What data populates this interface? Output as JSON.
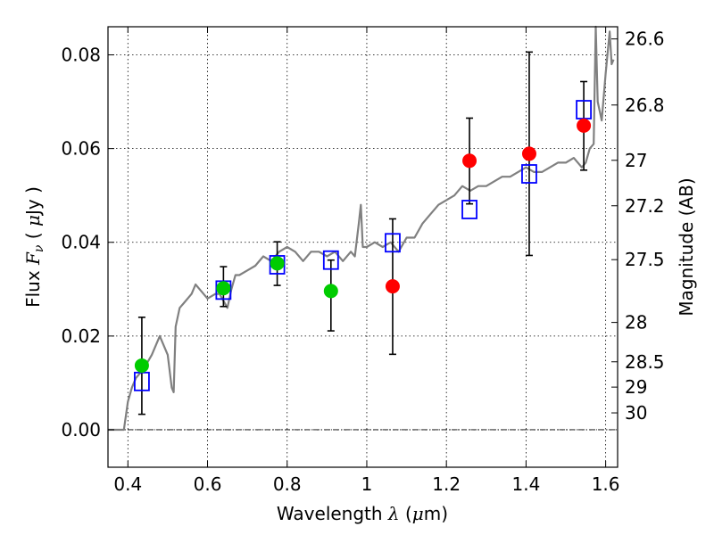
{
  "chart_data": {
    "type": "scatter",
    "xlabel": "Wavelength  λ (μm)",
    "ylabel": "Flux  Fν  ( μJy )",
    "y2label": "Magnitude (AB)",
    "xlim": [
      0.35,
      1.63
    ],
    "ylim": [
      -0.008,
      0.086
    ],
    "xticks": [
      0.4,
      0.6,
      0.8,
      1.0,
      1.2,
      1.4,
      1.6
    ],
    "xtick_labels": [
      "0.4",
      "0.6",
      "0.8",
      "1",
      "1.2",
      "1.4",
      "1.6"
    ],
    "yticks": [
      0.0,
      0.02,
      0.04,
      0.06,
      0.08
    ],
    "ytick_labels": [
      "0.00",
      "0.02",
      "0.04",
      "0.06",
      "0.08"
    ],
    "y2ticks": [
      {
        "label": "26.6",
        "flux": 0.0834
      },
      {
        "label": "26.8",
        "flux": 0.0693
      },
      {
        "label": "27",
        "flux": 0.0575
      },
      {
        "label": "27.2",
        "flux": 0.0478
      },
      {
        "label": "27.5",
        "flux": 0.0363
      },
      {
        "label": "28",
        "flux": 0.0229
      },
      {
        "label": "28.5",
        "flux": 0.0145
      },
      {
        "label": "29",
        "flux": 0.0091
      },
      {
        "label": "30",
        "flux": 0.0036
      }
    ],
    "grid": true,
    "series": [
      {
        "marker": "line",
        "color": "#808080",
        "x": [
          0.35,
          0.38,
          0.39,
          0.4,
          0.41,
          0.42,
          0.44,
          0.46,
          0.48,
          0.5,
          0.51,
          0.515,
          0.52,
          0.53,
          0.54,
          0.56,
          0.57,
          0.58,
          0.6,
          0.62,
          0.63,
          0.65,
          0.66,
          0.67,
          0.68,
          0.7,
          0.72,
          0.74,
          0.76,
          0.78,
          0.8,
          0.82,
          0.84,
          0.86,
          0.88,
          0.9,
          0.92,
          0.94,
          0.96,
          0.97,
          0.98,
          0.985,
          0.99,
          1.0,
          1.02,
          1.04,
          1.06,
          1.08,
          1.1,
          1.12,
          1.14,
          1.16,
          1.18,
          1.2,
          1.22,
          1.24,
          1.26,
          1.28,
          1.3,
          1.32,
          1.34,
          1.36,
          1.38,
          1.4,
          1.42,
          1.44,
          1.46,
          1.48,
          1.5,
          1.52,
          1.54,
          1.55,
          1.56,
          1.57,
          1.575,
          1.58,
          1.59,
          1.6,
          1.61,
          1.615,
          1.62
        ],
        "y": [
          0.0,
          0.0,
          0.0,
          0.006,
          0.009,
          0.011,
          0.013,
          0.016,
          0.02,
          0.016,
          0.009,
          0.008,
          0.022,
          0.026,
          0.027,
          0.029,
          0.031,
          0.03,
          0.028,
          0.029,
          0.029,
          0.026,
          0.03,
          0.033,
          0.033,
          0.034,
          0.035,
          0.037,
          0.036,
          0.038,
          0.039,
          0.038,
          0.036,
          0.038,
          0.038,
          0.037,
          0.038,
          0.036,
          0.038,
          0.037,
          0.044,
          0.048,
          0.039,
          0.039,
          0.04,
          0.039,
          0.04,
          0.038,
          0.041,
          0.041,
          0.044,
          0.046,
          0.048,
          0.049,
          0.05,
          0.052,
          0.051,
          0.052,
          0.052,
          0.053,
          0.054,
          0.054,
          0.055,
          0.056,
          0.055,
          0.055,
          0.056,
          0.057,
          0.057,
          0.058,
          0.056,
          0.057,
          0.06,
          0.061,
          0.086,
          0.07,
          0.066,
          0.076,
          0.085,
          0.078,
          0.079
        ]
      },
      {
        "marker": "open-square",
        "color": "#0000ff",
        "x": [
          0.435,
          0.64,
          0.775,
          0.91,
          1.065,
          1.258,
          1.408,
          1.545
        ],
        "y": [
          0.0103,
          0.0298,
          0.0352,
          0.0362,
          0.0399,
          0.047,
          0.0546,
          0.0683
        ]
      },
      {
        "marker": "filled-circle",
        "color": "#00cc00",
        "x": [
          0.435,
          0.64,
          0.775,
          0.91
        ],
        "y": [
          0.0137,
          0.0302,
          0.0355,
          0.0296
        ]
      },
      {
        "marker": "filled-circle",
        "color": "#ff0000",
        "x": [
          1.065,
          1.258,
          1.408,
          1.545
        ],
        "y": [
          0.0306,
          0.0574,
          0.0589,
          0.0649
        ]
      }
    ],
    "errorbars": [
      {
        "x": 0.435,
        "y": 0.0137,
        "lo": 0.0033,
        "hi": 0.024
      },
      {
        "x": 0.64,
        "y": 0.0302,
        "lo": 0.0263,
        "hi": 0.0348
      },
      {
        "x": 0.775,
        "y": 0.0355,
        "lo": 0.0308,
        "hi": 0.0401
      },
      {
        "x": 0.91,
        "y": 0.0296,
        "lo": 0.0211,
        "hi": 0.0362
      },
      {
        "x": 1.065,
        "y": 0.0306,
        "lo": 0.0161,
        "hi": 0.045
      },
      {
        "x": 1.258,
        "y": 0.0574,
        "lo": 0.0482,
        "hi": 0.0665
      },
      {
        "x": 1.408,
        "y": 0.0589,
        "lo": 0.0372,
        "hi": 0.0806
      },
      {
        "x": 1.545,
        "y": 0.0649,
        "lo": 0.0554,
        "hi": 0.0743
      }
    ]
  }
}
